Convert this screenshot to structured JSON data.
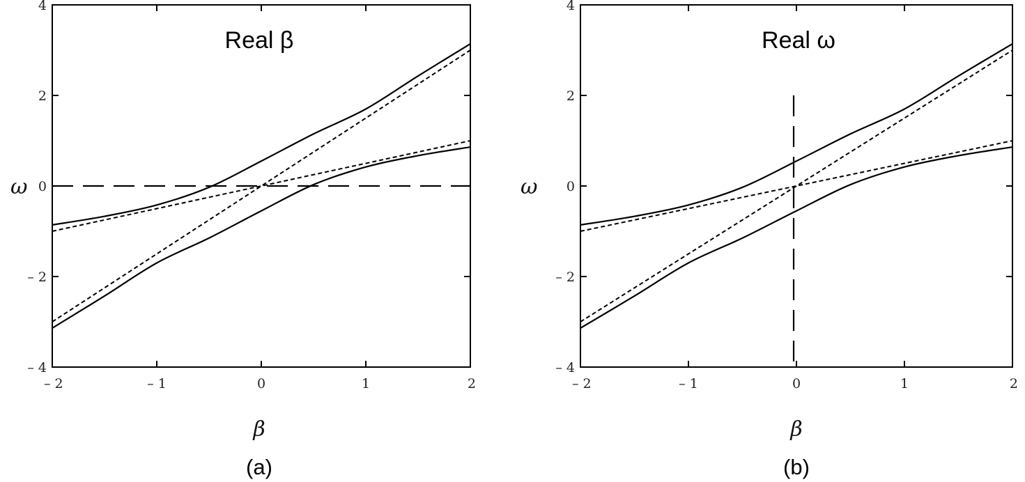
{
  "chart_data": [
    {
      "type": "line",
      "panel_label": "(a)",
      "title": "Real β",
      "xlabel": "β",
      "ylabel": "ω",
      "xlim": [
        -2,
        2
      ],
      "ylim": [
        -4,
        4
      ],
      "xticks": [
        -2,
        -1,
        0,
        1,
        2
      ],
      "yticks": [
        -4,
        -2,
        0,
        2,
        4
      ],
      "x_tick_labels": [
        "– 2",
        "– 1",
        "0",
        "1",
        "2"
      ],
      "y_tick_labels": [
        "– 4",
        "– 2",
        "0",
        "2",
        "4"
      ],
      "grid": false,
      "reference_line": {
        "orientation": "horizontal",
        "value": 0,
        "style": "long-dash"
      },
      "series": [
        {
          "style": "solid",
          "x": [
            -2,
            -1.5,
            -1,
            -0.5,
            0,
            0.5,
            1,
            1.5,
            2
          ],
          "y": [
            -0.86,
            -0.67,
            -0.42,
            -0.03,
            0.55,
            1.15,
            1.7,
            2.43,
            3.14
          ]
        },
        {
          "style": "solid",
          "x": [
            -2,
            -1.5,
            -1,
            -0.5,
            0,
            0.5,
            1,
            1.5,
            2
          ],
          "y": [
            -3.14,
            -2.43,
            -1.7,
            -1.15,
            -0.55,
            0.03,
            0.42,
            0.67,
            0.86
          ]
        },
        {
          "style": "dotted",
          "x": [
            -2,
            -1,
            0,
            1,
            2
          ],
          "y": [
            -3.0,
            -1.5,
            0,
            1.5,
            3.0
          ]
        },
        {
          "style": "dotted",
          "x": [
            -2,
            -1,
            0,
            1,
            2
          ],
          "y": [
            -1.0,
            -0.5,
            0,
            0.5,
            1.0
          ]
        }
      ]
    },
    {
      "type": "line",
      "panel_label": "(b)",
      "title": "Real ω",
      "xlabel": "β",
      "ylabel": "ω",
      "xlim": [
        -2,
        2
      ],
      "ylim": [
        -4,
        4
      ],
      "xticks": [
        -2,
        -1,
        0,
        1,
        2
      ],
      "yticks": [
        -4,
        -2,
        0,
        2,
        4
      ],
      "x_tick_labels": [
        "– 2",
        "– 1",
        "0",
        "1",
        "2"
      ],
      "y_tick_labels": [
        "– 4",
        "– 2",
        "0",
        "2",
        "4"
      ],
      "grid": false,
      "reference_line": {
        "orientation": "vertical",
        "value": 0,
        "style": "long-dash"
      },
      "series": [
        {
          "style": "solid",
          "x": [
            -2,
            -1.5,
            -1,
            -0.5,
            0,
            0.5,
            1,
            1.5,
            2
          ],
          "y": [
            -0.86,
            -0.67,
            -0.42,
            -0.03,
            0.55,
            1.15,
            1.7,
            2.43,
            3.14
          ]
        },
        {
          "style": "solid",
          "x": [
            -2,
            -1.5,
            -1,
            -0.5,
            0,
            0.5,
            1,
            1.5,
            2
          ],
          "y": [
            -3.14,
            -2.43,
            -1.7,
            -1.15,
            -0.55,
            0.03,
            0.42,
            0.67,
            0.86
          ]
        },
        {
          "style": "dotted",
          "x": [
            -2,
            -1,
            0,
            1,
            2
          ],
          "y": [
            -3.0,
            -1.5,
            0,
            1.5,
            3.0
          ]
        },
        {
          "style": "dotted",
          "x": [
            -2,
            -1,
            0,
            1,
            2
          ],
          "y": [
            -1.0,
            -0.5,
            0,
            0.5,
            1.0
          ]
        }
      ]
    }
  ]
}
